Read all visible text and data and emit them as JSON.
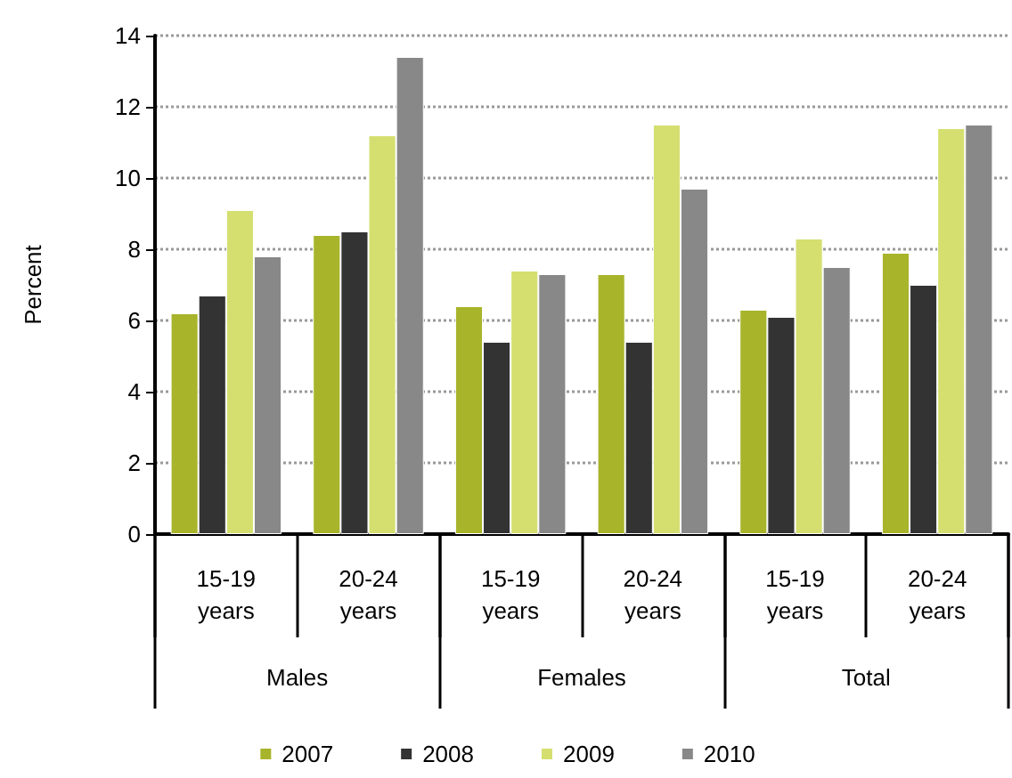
{
  "chart_data": {
    "type": "bar",
    "ylabel": "Percent",
    "categories": [
      "15-19\nyears",
      "20-24\nyears",
      "15-19\nyears",
      "20-24\nyears",
      "15-19\nyears",
      "20-24\nyears"
    ],
    "annotations": [
      "Males",
      "Females",
      "Total"
    ],
    "series": [
      {
        "name": "2007",
        "color": "#a8b42a",
        "values": [
          6.2,
          8.4,
          6.4,
          7.3,
          6.3,
          7.9
        ]
      },
      {
        "name": "2008",
        "color": "#333333",
        "values": [
          6.7,
          8.5,
          5.4,
          5.4,
          6.1,
          7.0
        ]
      },
      {
        "name": "2009",
        "color": "#d4df70",
        "values": [
          9.1,
          11.2,
          7.4,
          11.5,
          8.3,
          11.4
        ]
      },
      {
        "name": "2010",
        "color": "#888888",
        "values": [
          7.8,
          13.4,
          7.3,
          9.7,
          7.5,
          11.5
        ]
      }
    ],
    "ylim": [
      0,
      14
    ],
    "yticks": [
      0,
      2,
      4,
      6,
      8,
      10,
      12,
      14
    ],
    "grid": "y",
    "legend": "bottom"
  }
}
